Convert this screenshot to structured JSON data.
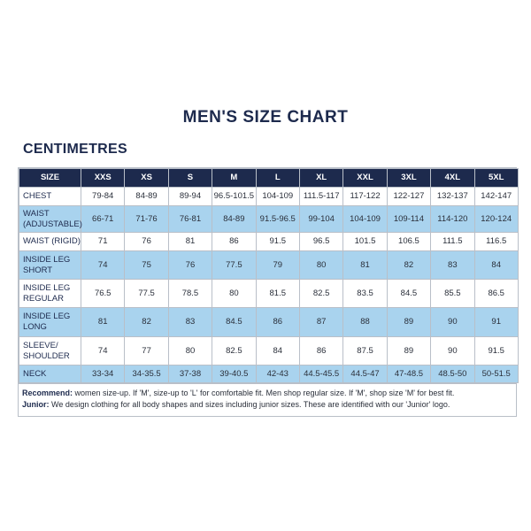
{
  "title": "MEN'S SIZE CHART",
  "subtitle": "CENTIMETRES",
  "table": {
    "headers": [
      "SIZE",
      "XXS",
      "XS",
      "S",
      "M",
      "L",
      "XL",
      "XXL",
      "3XL",
      "4XL",
      "5XL"
    ],
    "rows": [
      {
        "label": "CHEST",
        "values": [
          "79-84",
          "84-89",
          "89-94",
          "96.5-101.5",
          "104-109",
          "111.5-117",
          "117-122",
          "122-127",
          "132-137",
          "142-147"
        ]
      },
      {
        "label": "WAIST (ADJUSTABLE)",
        "values": [
          "66-71",
          "71-76",
          "76-81",
          "84-89",
          "91.5-96.5",
          "99-104",
          "104-109",
          "109-114",
          "114-120",
          "120-124"
        ]
      },
      {
        "label": "WAIST (RIGID)",
        "values": [
          "71",
          "76",
          "81",
          "86",
          "91.5",
          "96.5",
          "101.5",
          "106.5",
          "111.5",
          "116.5"
        ]
      },
      {
        "label": "INSIDE LEG SHORT",
        "values": [
          "74",
          "75",
          "76",
          "77.5",
          "79",
          "80",
          "81",
          "82",
          "83",
          "84"
        ]
      },
      {
        "label": "INSIDE LEG REGULAR",
        "values": [
          "76.5",
          "77.5",
          "78.5",
          "80",
          "81.5",
          "82.5",
          "83.5",
          "84.5",
          "85.5",
          "86.5"
        ]
      },
      {
        "label": "INSIDE LEG LONG",
        "values": [
          "81",
          "82",
          "83",
          "84.5",
          "86",
          "87",
          "88",
          "89",
          "90",
          "91"
        ]
      },
      {
        "label": "SLEEVE/ SHOULDER",
        "values": [
          "74",
          "77",
          "80",
          "82.5",
          "84",
          "86",
          "87.5",
          "89",
          "90",
          "91.5"
        ]
      },
      {
        "label": "NECK",
        "values": [
          "33-34",
          "34-35.5",
          "37-38",
          "39-40.5",
          "42-43",
          "44.5-45.5",
          "44.5-47",
          "47-48.5",
          "48.5-50",
          "50-51.5"
        ]
      }
    ]
  },
  "notes": {
    "recommend_label": "Recommend:",
    "recommend_text": " women size-up. If 'M', size-up to 'L' for comfortable fit. Men shop regular size. If 'M', shop size 'M' for best fit.",
    "junior_label": "Junior:",
    "junior_text": " We design clothing for all body shapes and sizes including junior sizes. These are identified with our 'Junior' logo."
  },
  "colors": {
    "navy": "#1d2a4d",
    "light_blue": "#a9d3ee",
    "white": "#ffffff"
  }
}
